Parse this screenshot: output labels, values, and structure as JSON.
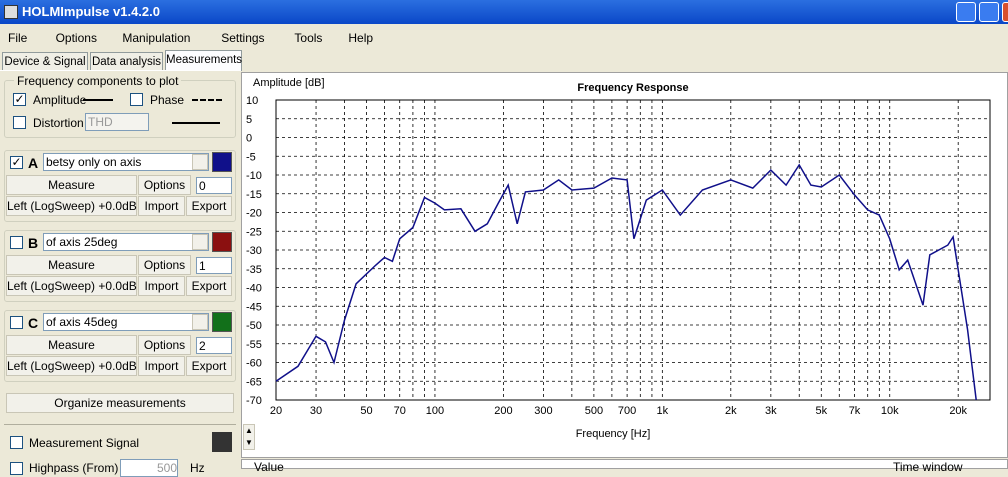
{
  "window": {
    "title": "HOLMImpulse  v1.4.2.0"
  },
  "menu": [
    "File",
    "Options",
    "Manipulation",
    "Settings",
    "Tools",
    "Help"
  ],
  "tabs": [
    "Device & Signal",
    "Data analysis",
    "Measurements"
  ],
  "components": {
    "title": "Frequency components to plot",
    "amplitude": "Amplitude",
    "amplitude_checked": true,
    "phase": "Phase",
    "phase_checked": false,
    "distortion": "Distortion",
    "distortion_checked": false,
    "distortion_type": "THD"
  },
  "measurements": [
    {
      "letter": "A",
      "checked": true,
      "name": "betsy only on axis",
      "color": "#10108a",
      "measure": "Measure",
      "options": "Options",
      "index": 0,
      "source": "Left (LogSweep) +0.0dB",
      "import": "Import",
      "export": "Export"
    },
    {
      "letter": "B",
      "checked": false,
      "name": "of axis 25deg",
      "color": "#8b1010",
      "measure": "Measure",
      "options": "Options",
      "index": 1,
      "source": "Left (LogSweep) +0.0dB",
      "import": "Import",
      "export": "Export"
    },
    {
      "letter": "C",
      "checked": false,
      "name": "of axis 45deg",
      "color": "#12701a",
      "measure": "Measure",
      "options": "Options",
      "index": 2,
      "source": "Left (LogSweep) +0.0dB",
      "import": "Import",
      "export": "Export"
    }
  ],
  "organize": "Organize measurements",
  "signal": {
    "label": "Measurement Signal",
    "color": "#333333"
  },
  "highpass": {
    "label": "Highpass (From)",
    "value": "500",
    "unit": "Hz"
  },
  "bottom": {
    "value": "Value",
    "time_window": "Time window"
  },
  "chart_data": {
    "type": "line",
    "title": "Frequency Response",
    "y_label": "Amplitude [dB]",
    "x_label": "Frequency [Hz]",
    "x_scale": "log",
    "grid": true,
    "xlim": [
      20,
      27600
    ],
    "ylim": [
      -70,
      10
    ],
    "xticks": [
      20,
      30,
      50,
      70,
      100,
      200,
      300,
      500,
      700,
      {
        "value": 1000,
        "label": "1k"
      },
      {
        "value": 2000,
        "label": "2k"
      },
      {
        "value": 3000,
        "label": "3k"
      },
      {
        "value": 5000,
        "label": "5k"
      },
      {
        "value": 7000,
        "label": "7k"
      },
      {
        "value": 10000,
        "label": "10k"
      },
      {
        "value": 20000,
        "label": "20k"
      }
    ],
    "x_minor_ticks": [
      40,
      60,
      80,
      90,
      400,
      600,
      800,
      900,
      4000,
      6000,
      8000,
      9000
    ],
    "yticks": [
      10,
      5,
      0,
      -5,
      -10,
      -15,
      -20,
      -25,
      -30,
      -35,
      -40,
      -45,
      -50,
      -55,
      -60,
      -65,
      -70
    ],
    "x": [
      20,
      25,
      30,
      33,
      36,
      40,
      45,
      55,
      60,
      65,
      70,
      80,
      90,
      100,
      110,
      130,
      150,
      170,
      190,
      210,
      230,
      250,
      300,
      350,
      400,
      500,
      600,
      700,
      750,
      850,
      1000,
      1200,
      1500,
      2000,
      2500,
      3000,
      3500,
      4000,
      4500,
      5000,
      6000,
      7000,
      8000,
      9000,
      10000,
      11000,
      12000,
      14000,
      15000,
      18000,
      19000,
      20000,
      22000,
      24000
    ],
    "series": [
      {
        "name": "betsy only on axis",
        "color": "#10108a",
        "values": [
          -65,
          -61,
          -53,
          -54.5,
          -60,
          -48.7,
          -39,
          -34,
          -32,
          -33,
          -27,
          -24,
          -16,
          -17.5,
          -19.3,
          -19,
          -25,
          -23,
          -17.5,
          -12.7,
          -23,
          -14.5,
          -14,
          -11.3,
          -14,
          -13.5,
          -10.8,
          -11.3,
          -27,
          -16.7,
          -14,
          -20.7,
          -14,
          -11.3,
          -13.5,
          -8.7,
          -12.7,
          -7.3,
          -12.7,
          -13.2,
          -10,
          -15.3,
          -19.3,
          -20.7,
          -27,
          -35.3,
          -32.7,
          -44.7,
          -31.3,
          -28.7,
          -26.5,
          -35.3,
          -51.3,
          -70
        ]
      }
    ]
  }
}
